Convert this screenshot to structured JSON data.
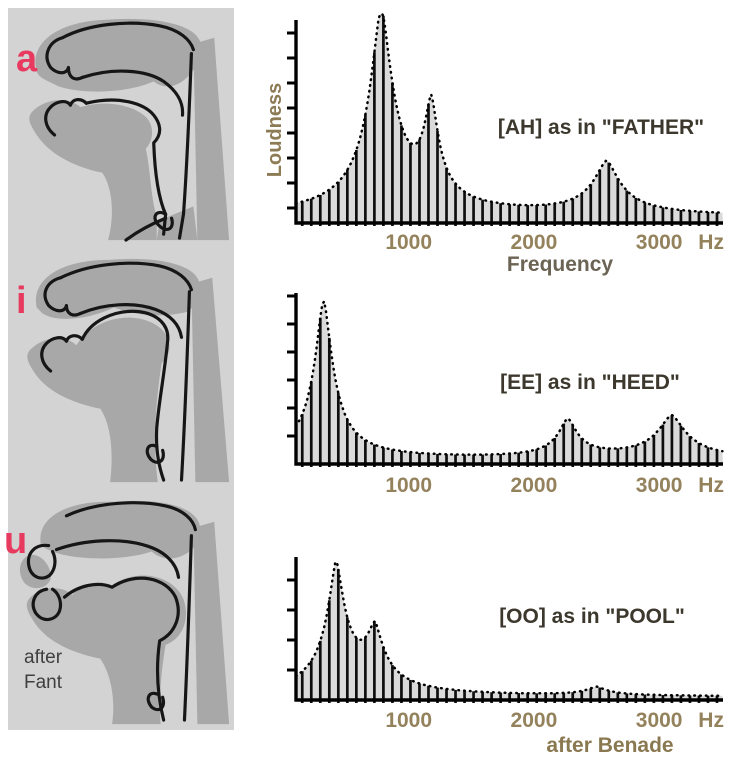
{
  "left_panel": {
    "background": "#d3d3d3",
    "shape_color": "#a8a8a8",
    "outline_color": "#161616",
    "vowel_color": "#e8395f",
    "vowels": [
      {
        "label": "a",
        "description": "vocal tract profile, open vowel"
      },
      {
        "label": "i",
        "description": "vocal tract profile, front close vowel"
      },
      {
        "label": "u",
        "description": "vocal tract profile, rounded back vowel"
      }
    ],
    "credit_lines": [
      "after",
      "Fant"
    ],
    "credit_color": "#3f3f3f"
  },
  "charts_common": {
    "tick_color": "#94825c",
    "axis_color": "#000000",
    "bar_color": "#0e0e0e",
    "envelope_color": "#000000",
    "fill_color": "#dadada",
    "annotation_color": "#3d382d",
    "xlabel_color": "#6b6353",
    "ylabel_color": "#8d7b55",
    "credit_color": "#8a7850",
    "x_unit": "Hz"
  },
  "chart_data": [
    {
      "id": "ah",
      "type": "bar",
      "title": "[AH] as in \"FATHER\"",
      "xlabel": "Frequency",
      "ylabel": "Loudness",
      "x_unit": "Hz",
      "x_ticks_hz": [
        1000,
        2000,
        3000
      ],
      "x_range_hz": [
        100,
        3510
      ],
      "y_range": [
        0,
        1
      ],
      "grid": false,
      "harmonic_spacing_hz": 72,
      "first_harmonic_hz": 150,
      "spectrum_floor": 0.03,
      "resonance_exponent": 1.6,
      "envelope_clip": 1.03,
      "envelope_style": "dotted",
      "formants": [
        {
          "f_hz": 780,
          "rel_amplitude": 1.0,
          "width_hz": 120
        },
        {
          "f_hz": 1180,
          "rel_amplitude": 0.47,
          "width_hz": 75
        },
        {
          "f_hz": 2580,
          "rel_amplitude": 0.26,
          "width_hz": 140
        }
      ]
    },
    {
      "id": "ee",
      "type": "bar",
      "title": "[EE] as in \"HEED\"",
      "xlabel": "",
      "ylabel": "",
      "x_unit": "Hz",
      "x_ticks_hz": [
        1000,
        2000,
        3000
      ],
      "x_range_hz": [
        100,
        3510
      ],
      "y_range": [
        0,
        1
      ],
      "grid": false,
      "harmonic_spacing_hz": 72,
      "first_harmonic_hz": 150,
      "spectrum_floor": 0.025,
      "resonance_exponent": 1.6,
      "envelope_clip": 1.0,
      "envelope_style": "dotted",
      "formants": [
        {
          "f_hz": 320,
          "rel_amplitude": 0.93,
          "width_hz": 95
        },
        {
          "f_hz": 2270,
          "rel_amplitude": 0.22,
          "width_hz": 100
        },
        {
          "f_hz": 3100,
          "rel_amplitude": 0.25,
          "width_hz": 150
        }
      ]
    },
    {
      "id": "oo",
      "type": "bar",
      "title": "[OO] as in \"POOL\"",
      "xlabel": "",
      "ylabel": "",
      "credit": "after Benade",
      "x_unit": "Hz",
      "x_ticks_hz": [
        1000,
        2000,
        3000
      ],
      "x_range_hz": [
        100,
        3510
      ],
      "y_range": [
        0,
        1
      ],
      "grid": false,
      "harmonic_spacing_hz": 72,
      "first_harmonic_hz": 150,
      "spectrum_floor": 0.02,
      "resonance_exponent": 1.5,
      "envelope_clip": 1.0,
      "envelope_style": "dotted",
      "formants": [
        {
          "f_hz": 420,
          "rel_amplitude": 0.9,
          "width_hz": 95
        },
        {
          "f_hz": 730,
          "rel_amplitude": 0.4,
          "width_hz": 95
        },
        {
          "f_hz": 2500,
          "rel_amplitude": 0.06,
          "width_hz": 110
        }
      ]
    }
  ]
}
